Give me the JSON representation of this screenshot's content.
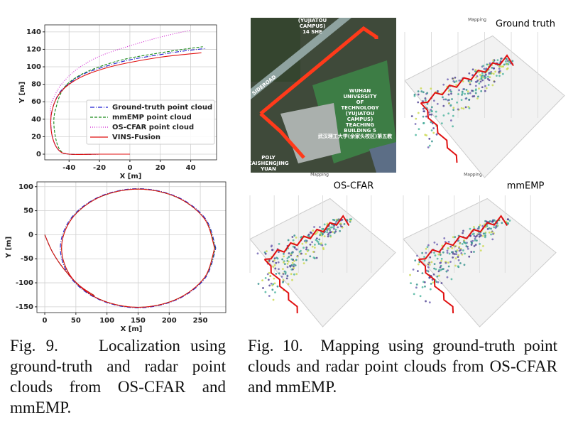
{
  "chart_data": [
    {
      "type": "line",
      "x_label": "X [m]",
      "y_label": "Y [m]",
      "xlim": [
        -56,
        57
      ],
      "ylim": [
        -6.5,
        148
      ],
      "xticks": [
        -40,
        -20,
        0,
        20,
        40
      ],
      "yticks": [
        0,
        20,
        40,
        60,
        80,
        100,
        120,
        140
      ],
      "grid": true,
      "legend": "lower right",
      "series": [
        {
          "name": "Ground-truth point cloud",
          "color": "#1f1fd0",
          "linestyle": "dashdot",
          "x": [
            0,
            -20,
            -40,
            -47,
            -51,
            -52,
            -50,
            -46,
            -40,
            -30,
            -15,
            0,
            20,
            35,
            50
          ],
          "values": [
            0,
            0,
            0,
            5,
            20,
            40,
            57,
            71,
            81,
            92,
            101,
            108,
            114,
            118,
            121
          ]
        },
        {
          "name": "mmEMP point cloud",
          "color": "#1a8a1a",
          "linestyle": "dashed",
          "x": [
            0,
            -20,
            -40,
            -46,
            -49,
            -50,
            -48,
            -45,
            -40,
            -30,
            -15,
            0,
            20,
            35,
            48
          ],
          "values": [
            0,
            0,
            0,
            5,
            20,
            40,
            57,
            71,
            82,
            93,
            103,
            110,
            116,
            120,
            123
          ]
        },
        {
          "name": "OS-CFAR point cloud",
          "color": "#d020d0",
          "linestyle": "dotted",
          "x": [
            0,
            -20,
            -40,
            -47,
            -51,
            -52,
            -52,
            -50,
            -45,
            -35,
            -20,
            0,
            20,
            40
          ],
          "values": [
            0,
            0,
            0,
            5,
            20,
            40,
            55,
            65,
            80,
            97,
            112,
            124,
            134,
            142
          ]
        },
        {
          "name": "VINS-Fusion",
          "color": "#e01010",
          "linestyle": "solid",
          "x": [
            0,
            -20,
            -40,
            -47,
            -51,
            -52,
            -50,
            -46,
            -40,
            -30,
            -15,
            0,
            20,
            35,
            47
          ],
          "values": [
            0,
            0,
            0,
            5,
            20,
            40,
            57,
            70,
            80,
            90,
            99,
            105,
            111,
            114,
            116
          ]
        }
      ]
    },
    {
      "type": "line",
      "x_label": "X [m]",
      "y_label": "Y [m]",
      "xlim": [
        -12.6,
        291
      ],
      "ylim": [
        -162,
        110
      ],
      "xticks": [
        0,
        50,
        100,
        150,
        200,
        250
      ],
      "yticks": [
        -150,
        -100,
        -50,
        0,
        50,
        100
      ],
      "grid": true,
      "series": [
        {
          "color": "#1f1fd0",
          "linestyle": "dashdot",
          "x": [
            0,
            12,
            30,
            55,
            80,
            null,
            275,
            258,
            212.5,
            150,
            87.5,
            42,
            25,
            42,
            87.5,
            150,
            212.5,
            258,
            275
          ],
          "values": [
            0,
            -35,
            -70,
            -105,
            -127,
            null,
            -28,
            34,
            79,
            96,
            79,
            34,
            -28,
            -90,
            -135,
            -152,
            -135,
            -90,
            -28
          ]
        },
        {
          "color": "#1a8a1a",
          "linestyle": "dashed",
          "x": [
            0,
            12,
            30,
            55,
            79,
            null,
            274,
            257,
            212,
            150,
            88,
            43,
            27,
            43,
            88,
            150,
            212,
            257,
            274
          ],
          "values": [
            0,
            -35,
            -70,
            -105,
            -126,
            null,
            -28,
            33,
            78,
            95,
            78,
            33,
            -28,
            -89,
            -134,
            -151,
            -134,
            -89,
            -28
          ]
        },
        {
          "color": "#e01010",
          "linestyle": "solid",
          "x": [
            0,
            12,
            30,
            55,
            80,
            null,
            273,
            256.5,
            211.5,
            150,
            88.5,
            43.5,
            27,
            43.5,
            88.5,
            150,
            211.5,
            256.5,
            273
          ],
          "values": [
            0,
            -35,
            -70,
            -105,
            -127,
            null,
            -28,
            33.5,
            78.5,
            95,
            78.5,
            33.5,
            -28,
            -89.5,
            -134.5,
            -151,
            -134.5,
            -89.5,
            -28
          ]
        }
      ]
    }
  ],
  "figures": {
    "map_labels": [
      "(YUJIATOU",
      "CAMPUS)",
      "14 SHE",
      "SIDEROAD",
      "WUHAN",
      "UNIVERSITY",
      "OF",
      "TECHNOLOGY",
      "(YUJIATOU",
      "CAMPUS)",
      "TEACHING",
      "BUILDING 5",
      "武汉理工大学(余家头校区)第五教",
      "POLY",
      "CAISHENGJING",
      "YUAN"
    ],
    "panel_titles": [
      "Ground truth",
      "OS-CFAR",
      "mmEMP"
    ],
    "panel_tag": "Mapping"
  },
  "captions": [
    {
      "label": "Fig. 9.",
      "text": "Localization using ground-truth and radar point clouds from OS-CFAR and mmEMP."
    },
    {
      "label": "Fig. 10.",
      "text": "Mapping using ground-truth point clouds and radar point clouds from OS-CFAR and mmEMP."
    }
  ]
}
